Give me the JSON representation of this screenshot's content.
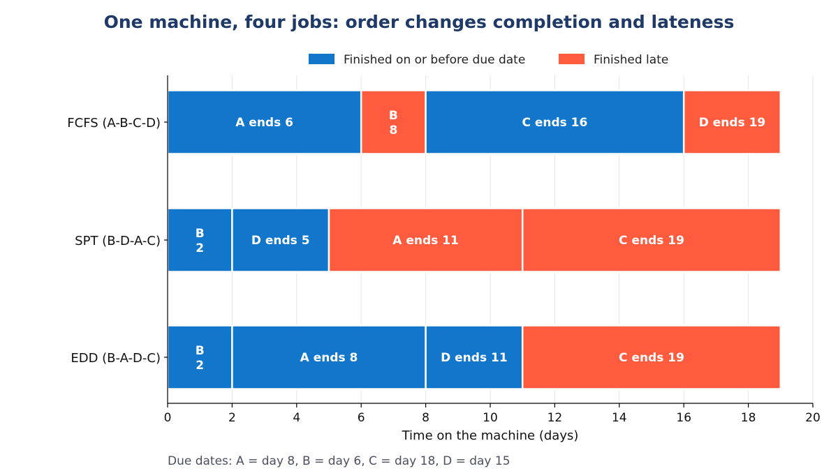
{
  "chart_data": {
    "type": "bar",
    "orientation": "horizontal",
    "stacked": true,
    "title": "One machine, four jobs: order changes completion and lateness",
    "xlabel": "Time on the machine (days)",
    "xlim": [
      0,
      20
    ],
    "xticks": [
      0,
      2,
      4,
      6,
      8,
      10,
      12,
      14,
      16,
      18,
      20
    ],
    "grid": "vertical",
    "legend_placement": "top",
    "legend": [
      {
        "key": "ontime",
        "label": "Finished on or before due date",
        "color": "#1276CB"
      },
      {
        "key": "late",
        "label": "Finished late",
        "color": "#FF5C3F"
      }
    ],
    "title_color": "#1F3A68",
    "rows": [
      {
        "label": "FCFS  (A-B-C-D)",
        "segments": [
          {
            "job": "A",
            "start": 0,
            "end": 6,
            "status": "ontime",
            "text": "A  ends 6"
          },
          {
            "job": "B",
            "start": 6,
            "end": 8,
            "status": "late",
            "text": "B\n8"
          },
          {
            "job": "C",
            "start": 8,
            "end": 16,
            "status": "ontime",
            "text": "C  ends 16"
          },
          {
            "job": "D",
            "start": 16,
            "end": 19,
            "status": "late",
            "text": "D  ends 19"
          }
        ]
      },
      {
        "label": "SPT  (B-D-A-C)",
        "segments": [
          {
            "job": "B",
            "start": 0,
            "end": 2,
            "status": "ontime",
            "text": "B\n2"
          },
          {
            "job": "D",
            "start": 2,
            "end": 5,
            "status": "ontime",
            "text": "D  ends 5"
          },
          {
            "job": "A",
            "start": 5,
            "end": 11,
            "status": "late",
            "text": "A  ends 11"
          },
          {
            "job": "C",
            "start": 11,
            "end": 19,
            "status": "late",
            "text": "C  ends 19"
          }
        ]
      },
      {
        "label": "EDD  (B-A-D-C)",
        "segments": [
          {
            "job": "B",
            "start": 0,
            "end": 2,
            "status": "ontime",
            "text": "B\n2"
          },
          {
            "job": "A",
            "start": 2,
            "end": 8,
            "status": "ontime",
            "text": "A  ends 8"
          },
          {
            "job": "D",
            "start": 8,
            "end": 11,
            "status": "ontime",
            "text": "D  ends 11"
          },
          {
            "job": "C",
            "start": 11,
            "end": 19,
            "status": "late",
            "text": "C  ends 19"
          }
        ]
      }
    ],
    "footnote": "Due dates: A = day 8, B = day 6, C = day 18, D = day 15"
  }
}
